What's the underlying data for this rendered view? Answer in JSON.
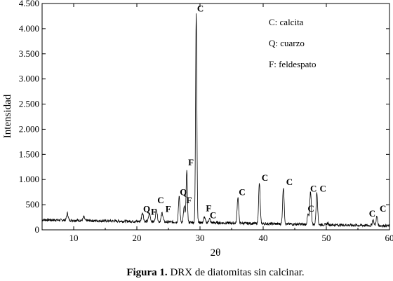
{
  "caption": {
    "bold": "Figura 1.",
    "rest": " DRX de diatomitas sin calcinar."
  },
  "chart_data": {
    "type": "line",
    "title": "",
    "xlabel": "2θ",
    "ylabel": "Intensidad",
    "xlim": [
      5,
      60
    ],
    "ylim": [
      0,
      4500
    ],
    "xticks": [
      10,
      20,
      30,
      40,
      50,
      60
    ],
    "xtick_labels": [
      "10",
      "20",
      "30",
      "40",
      "50",
      "60"
    ],
    "yticks": [
      0,
      500,
      1000,
      1500,
      2000,
      2500,
      3000,
      3500,
      4000,
      4500
    ],
    "ytick_labels": [
      "0",
      "500",
      "1.000",
      "1.500",
      "2.000",
      "2.500",
      "3.000",
      "3.500",
      "4.000",
      "4.500"
    ],
    "grid": false,
    "legend_position": "top-right",
    "legend": [
      "C: calcita",
      "Q: cuarzo",
      "F: feldespato"
    ],
    "baseline": {
      "start": 200,
      "end": 80
    },
    "peaks": [
      {
        "x": 9.0,
        "y": 260,
        "w": 0.12
      },
      {
        "x": 11.6,
        "y": 190,
        "w": 0.12
      },
      {
        "x": 20.9,
        "y": 300,
        "w": 0.14
      },
      {
        "x": 22.0,
        "y": 280,
        "w": 0.14
      },
      {
        "x": 23.1,
        "y": 360,
        "w": 0.14
      },
      {
        "x": 24.0,
        "y": 300,
        "w": 0.14
      },
      {
        "x": 26.7,
        "y": 620,
        "w": 0.12
      },
      {
        "x": 27.5,
        "y": 430,
        "w": 0.12
      },
      {
        "x": 27.9,
        "y": 1150,
        "w": 0.1
      },
      {
        "x": 29.4,
        "y": 4300,
        "w": 0.1
      },
      {
        "x": 30.7,
        "y": 230,
        "w": 0.12
      },
      {
        "x": 31.5,
        "y": 200,
        "w": 0.12
      },
      {
        "x": 36.0,
        "y": 640,
        "w": 0.12
      },
      {
        "x": 39.4,
        "y": 920,
        "w": 0.12
      },
      {
        "x": 43.2,
        "y": 850,
        "w": 0.12
      },
      {
        "x": 47.1,
        "y": 320,
        "w": 0.12
      },
      {
        "x": 47.5,
        "y": 780,
        "w": 0.12
      },
      {
        "x": 48.5,
        "y": 770,
        "w": 0.12
      },
      {
        "x": 50.2,
        "y": 150,
        "w": 0.12
      },
      {
        "x": 57.4,
        "y": 230,
        "w": 0.12
      },
      {
        "x": 58.0,
        "y": 300,
        "w": 0.12
      }
    ],
    "annotations": [
      {
        "label": "C",
        "x": 29.4,
        "y": 4300
      },
      {
        "label": "F",
        "x": 27.9,
        "y": 1240
      },
      {
        "label": "Q",
        "x": 26.7,
        "y": 650
      },
      {
        "label": "F",
        "x": 27.6,
        "y": 490
      },
      {
        "label": "C",
        "x": 23.1,
        "y": 490
      },
      {
        "label": "Q",
        "x": 20.9,
        "y": 310
      },
      {
        "label": "F",
        "x": 22.0,
        "y": 260
      },
      {
        "label": "F",
        "x": 24.3,
        "y": 310
      },
      {
        "label": "F",
        "x": 30.7,
        "y": 330
      },
      {
        "label": "C",
        "x": 31.4,
        "y": 190
      },
      {
        "label": "C",
        "x": 36.0,
        "y": 650
      },
      {
        "label": "C",
        "x": 39.6,
        "y": 930
      },
      {
        "label": "C",
        "x": 43.5,
        "y": 850
      },
      {
        "label": "C",
        "x": 47.3,
        "y": 720
      },
      {
        "label": "C",
        "x": 46.9,
        "y": 320
      },
      {
        "label": "C",
        "x": 48.8,
        "y": 720
      },
      {
        "label": "C",
        "x": 56.6,
        "y": 220
      },
      {
        "label": "C",
        "x": 58.3,
        "y": 320
      }
    ]
  }
}
